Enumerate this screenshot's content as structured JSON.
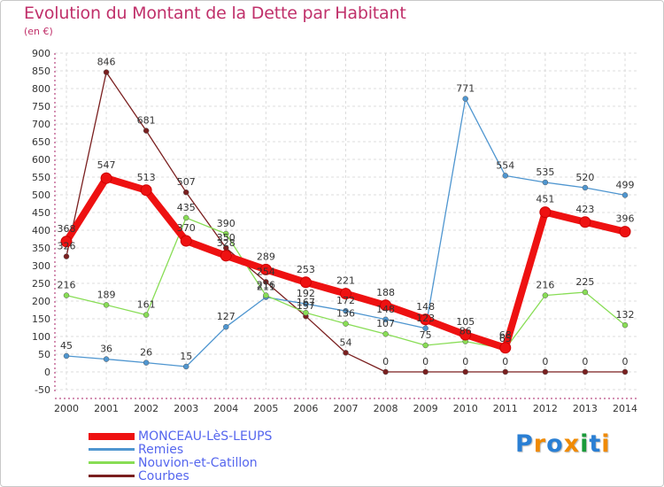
{
  "title": "Evolution du Montant de la Dette par Habitant",
  "subtitle": "(en €)",
  "chart_data": {
    "type": "line",
    "x": [
      "2000",
      "2001",
      "2002",
      "2003",
      "2004",
      "2005",
      "2006",
      "2007",
      "2008",
      "2009",
      "2010",
      "2011",
      "2012",
      "2013",
      "2014"
    ],
    "ylim": [
      -50,
      900
    ],
    "yticks": [
      -50,
      0,
      50,
      100,
      150,
      200,
      250,
      300,
      350,
      400,
      450,
      500,
      550,
      600,
      650,
      700,
      750,
      800,
      850,
      900
    ],
    "grid": true,
    "legend_position": "bottom-left",
    "series": [
      {
        "name": "MONCEAU-LèS-LEUPS",
        "color": "#ee1111",
        "values": [
          368,
          547,
          513,
          370,
          328,
          289,
          253,
          221,
          188,
          148,
          105,
          68,
          451,
          423,
          396
        ]
      },
      {
        "name": "Remies",
        "color": "#4f96d0",
        "values": [
          45,
          36,
          26,
          15,
          127,
          211,
          192,
          172,
          148,
          123,
          771,
          554,
          535,
          520,
          499
        ]
      },
      {
        "name": "Nouvion-et-Catillon",
        "color": "#88dd55",
        "values": [
          216,
          189,
          161,
          435,
          390,
          216,
          167,
          136,
          107,
          75,
          86,
          65,
          216,
          225,
          132
        ]
      },
      {
        "name": "Courbes",
        "color": "#7a1f1f",
        "values": [
          326,
          846,
          681,
          507,
          350,
          254,
          157,
          54,
          0,
          0,
          0,
          0,
          0,
          0,
          0
        ]
      }
    ]
  },
  "logo": {
    "text": "Proxiti",
    "colors": [
      "#2a7fd4",
      "#f08a00",
      "#2a7fd4",
      "#f08a00",
      "#1a9a3a",
      "#2a7fd4",
      "#f08a00"
    ]
  }
}
